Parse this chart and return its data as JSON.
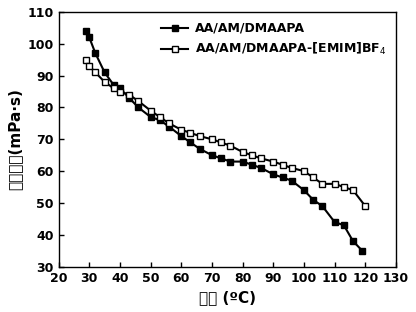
{
  "series1_label": "AA/AM/DMAAPA",
  "series2_label": "AA/AM/DMAAPA-[EMIM]BF$_4$",
  "series1_x": [
    29,
    30,
    32,
    35,
    38,
    40,
    43,
    46,
    50,
    53,
    56,
    60,
    63,
    66,
    70,
    73,
    76,
    80,
    83,
    86,
    90,
    93,
    96,
    100,
    103,
    106,
    110,
    113,
    116,
    119
  ],
  "series1_y": [
    104,
    102,
    97,
    91,
    87,
    86,
    83,
    80,
    77,
    76,
    74,
    71,
    69,
    67,
    65,
    64,
    63,
    63,
    62,
    61,
    59,
    58,
    57,
    54,
    51,
    49,
    44,
    43,
    38,
    35
  ],
  "series2_x": [
    29,
    30,
    32,
    35,
    38,
    40,
    43,
    46,
    50,
    53,
    56,
    60,
    63,
    66,
    70,
    73,
    76,
    80,
    83,
    86,
    90,
    93,
    96,
    100,
    103,
    106,
    110,
    113,
    116,
    120
  ],
  "series2_y": [
    95,
    93,
    91,
    88,
    86,
    85,
    84,
    82,
    79,
    77,
    75,
    73,
    72,
    71,
    70,
    69,
    68,
    66,
    65,
    64,
    63,
    62,
    61,
    60,
    58,
    56,
    56,
    55,
    54,
    49
  ],
  "xlabel": "温度 (ºC)",
  "ylabel": "表观粘度(mPa·s)",
  "xlim": [
    20,
    130
  ],
  "ylim": [
    30,
    110
  ],
  "xticks": [
    20,
    30,
    40,
    50,
    60,
    70,
    80,
    90,
    100,
    110,
    120,
    130
  ],
  "yticks": [
    30,
    40,
    50,
    60,
    70,
    80,
    90,
    100,
    110
  ],
  "line_color": "#000000",
  "bg_color": "#ffffff",
  "label_fontsize": 11,
  "tick_fontsize": 9,
  "legend_fontsize": 9
}
